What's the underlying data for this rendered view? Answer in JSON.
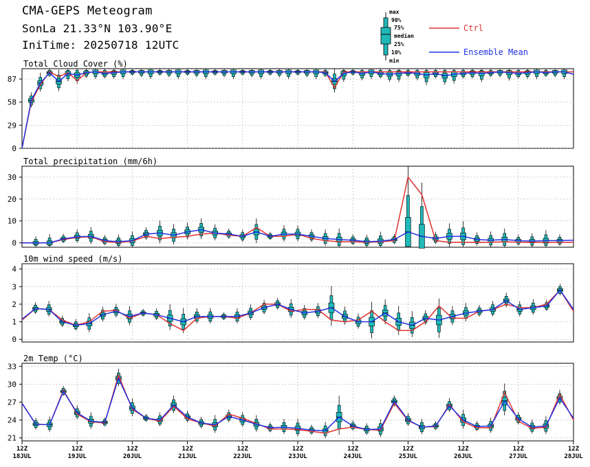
{
  "header": {
    "title": "CMA-GEPS Meteogram",
    "station": "SonLa 21.33°N 103.90°E",
    "init": "IniTime: 20250718 12UTC"
  },
  "legend": {
    "box_labels": [
      "max",
      "90%",
      "75%",
      "median",
      "25%",
      "10%",
      "min"
    ],
    "ctrl": "Ctrl",
    "mean": "Ensemble Mean",
    "ctrl_color": "#e03030",
    "mean_color": "#2030e0",
    "box_color": "#20b8b8"
  },
  "chart_data": [
    {
      "type": "line",
      "title": "Total Cloud Cover (%)",
      "ylim": [
        0,
        100
      ],
      "yticks": [
        0,
        29,
        58,
        87
      ],
      "grid": true,
      "series": [
        {
          "name": "Ctrl",
          "values": [
            0,
            58,
            80,
            96,
            90,
            95,
            85,
            95,
            96,
            96,
            96,
            96,
            96,
            96,
            96,
            96,
            96,
            96,
            96,
            96,
            96,
            96,
            96,
            96,
            96,
            96,
            96,
            96,
            96,
            96,
            96,
            96,
            96,
            96,
            76,
            96,
            96,
            96,
            96,
            96,
            96,
            96,
            96,
            96,
            96,
            96,
            96,
            96,
            96,
            96,
            96,
            96,
            96,
            96,
            96,
            96,
            96,
            96,
            96,
            96,
            96
          ]
        },
        {
          "name": "Ensemble Mean",
          "values": [
            0,
            60,
            82,
            95,
            84,
            94,
            92,
            95,
            96,
            94,
            95,
            96,
            96,
            96,
            96,
            96,
            96,
            96,
            96,
            96,
            96,
            96,
            96,
            96,
            96,
            96,
            96,
            96,
            96,
            96,
            96,
            96,
            96,
            95,
            84,
            94,
            96,
            94,
            96,
            94,
            93,
            94,
            95,
            94,
            92,
            94,
            91,
            93,
            94,
            95,
            94,
            95,
            96,
            95,
            94,
            95,
            96,
            95,
            96,
            96,
            93
          ]
        }
      ]
    },
    {
      "type": "line",
      "title": "Total precipitation (mm/6h)",
      "ylim": [
        -2,
        35
      ],
      "yticks": [
        0,
        10,
        20,
        30
      ],
      "grid": true,
      "series": [
        {
          "name": "Ctrl",
          "values": [
            0,
            0,
            0,
            1.5,
            2.5,
            2.8,
            0.5,
            0.2,
            0.8,
            3,
            2,
            2.5,
            3,
            4,
            4.5,
            3.5,
            3,
            7,
            3,
            3,
            4,
            2,
            1,
            0.5,
            0.5,
            0.3,
            0.5,
            1,
            30,
            22,
            1,
            0.3,
            0.3,
            0.3,
            0.3,
            0.5,
            0.3,
            0.3,
            0.2,
            0.2,
            0.3
          ]
        },
        {
          "name": "Ensemble Mean",
          "values": [
            0,
            0,
            0,
            1.8,
            2.8,
            3,
            1,
            0.5,
            1,
            4,
            4.5,
            3.5,
            5,
            6,
            4.5,
            4,
            3,
            5,
            3,
            4,
            4,
            3,
            2,
            1.5,
            1.2,
            0.5,
            0.8,
            1.5,
            5,
            3,
            2,
            3,
            3,
            1.5,
            1.2,
            1.5,
            1,
            0.8,
            1,
            1,
            1.2
          ]
        }
      ]
    },
    {
      "type": "line",
      "title": "10m wind speed (m/s)",
      "ylim": [
        -0.15,
        4.3
      ],
      "yticks": [
        0,
        1,
        2,
        3,
        4
      ],
      "grid": true,
      "series": [
        {
          "name": "Ctrl",
          "values": [
            1.1,
            1.75,
            1.7,
            1.1,
            0.8,
            1.0,
            1.6,
            1.65,
            1.2,
            1.5,
            1.4,
            0.9,
            0.5,
            1.2,
            1.3,
            1.3,
            1.2,
            1.5,
            2.0,
            2.0,
            1.6,
            1.7,
            1.7,
            1.1,
            1.0,
            1.1,
            1.6,
            1.0,
            0.5,
            0.5,
            1.0,
            1.9,
            1.2,
            1.2,
            1.6,
            1.7,
            2.0,
            1.8,
            1.8,
            2.0,
            2.8,
            1.6
          ]
        },
        {
          "name": "Ensemble Mean",
          "values": [
            1.15,
            1.75,
            1.7,
            1.0,
            0.8,
            0.9,
            1.4,
            1.6,
            1.3,
            1.5,
            1.4,
            1.2,
            1.0,
            1.3,
            1.3,
            1.3,
            1.3,
            1.5,
            1.8,
            2.0,
            1.7,
            1.5,
            1.6,
            1.8,
            1.3,
            1.0,
            1.0,
            1.5,
            1.0,
            0.8,
            1.2,
            1.1,
            1.3,
            1.5,
            1.6,
            1.7,
            2.2,
            1.7,
            1.8,
            1.9,
            2.8,
            1.7
          ]
        }
      ]
    },
    {
      "type": "line",
      "title": "2m Temp (°C)",
      "ylim": [
        20.5,
        33.5
      ],
      "yticks": [
        21,
        24,
        27,
        30,
        33
      ],
      "grid": true,
      "series": [
        {
          "name": "Ctrl",
          "values": [
            26.8,
            23.3,
            23.2,
            29,
            25,
            23.7,
            23.5,
            31.5,
            25.8,
            24.3,
            23.8,
            26.3,
            24.2,
            23.5,
            23,
            25,
            24.3,
            23.4,
            22.5,
            22.5,
            22.4,
            22.1,
            21.8,
            22.5,
            22.8,
            22.4,
            22.3,
            26.8,
            23.9,
            22.8,
            22.9,
            26.6,
            23.7,
            22.7,
            22.7,
            28.6,
            23.8,
            22.6,
            22.8,
            28.3,
            24
          ]
        },
        {
          "name": "Ensemble Mean",
          "values": [
            26.8,
            23.3,
            23.2,
            28.8,
            25.2,
            23.8,
            23.6,
            31,
            26,
            24.3,
            24,
            26.5,
            24.5,
            23.5,
            23.2,
            24.6,
            24,
            23.3,
            22.7,
            22.8,
            22.6,
            22.3,
            22.2,
            24.5,
            23,
            22.4,
            22.5,
            27.1,
            24,
            22.8,
            23,
            26.4,
            24,
            22.9,
            23,
            27.2,
            24.2,
            22.8,
            23,
            27.7,
            24.3
          ]
        }
      ]
    }
  ],
  "x_axis": {
    "labels": [
      [
        "12Z",
        "18JUL"
      ],
      [
        "12Z",
        "19JUL"
      ],
      [
        "12Z",
        "20JUL"
      ],
      [
        "12Z",
        "21JUL"
      ],
      [
        "12Z",
        "22JUL"
      ],
      [
        "12Z",
        "23JUL"
      ],
      [
        "12Z",
        "24JUL"
      ],
      [
        "12Z",
        "25JUL"
      ],
      [
        "12Z",
        "26JUL"
      ],
      [
        "12Z",
        "27JUL"
      ],
      [
        "12Z",
        "28JUL"
      ]
    ]
  }
}
